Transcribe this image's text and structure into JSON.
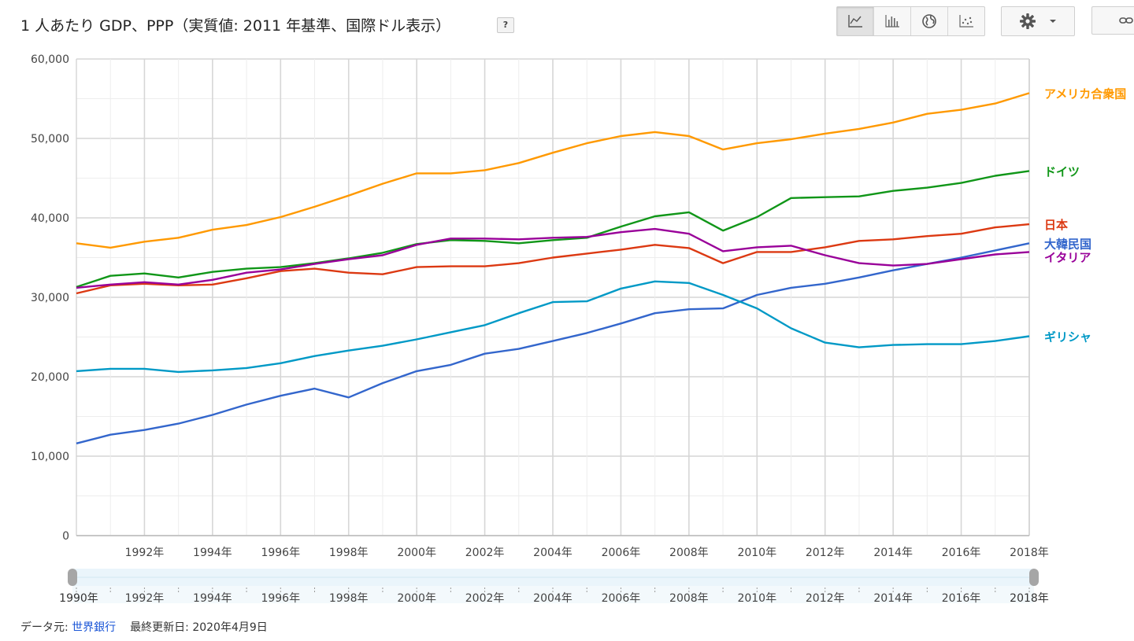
{
  "header": {
    "title": "1 人あたり GDP、PPP（実質値: 2011 年基準、国際ドル表示）",
    "help_label": "?"
  },
  "toolbar": {
    "buttons": [
      {
        "icon": "line-chart-icon",
        "active": true
      },
      {
        "icon": "bar-chart-icon",
        "active": false
      },
      {
        "icon": "globe-icon",
        "active": false
      },
      {
        "icon": "scatter-plot-icon",
        "active": false
      }
    ],
    "settings_icon": "gear-icon",
    "dropdown_icon": "caret-down-icon",
    "link_icon": "link-icon"
  },
  "footer": {
    "source_prefix": "データ元: ",
    "source_link": "世界銀行",
    "updated": "最終更新日: 2020年4月9日"
  },
  "range_slider": {
    "start_label": "1990年",
    "end_label": "2018年",
    "tick_labels": [
      "1992年",
      "1994年",
      "1996年",
      "1998年",
      "2000年",
      "2002年",
      "2004年",
      "2006年",
      "2008年",
      "2010年",
      "2012年",
      "2014年",
      "2016年"
    ]
  },
  "chart_data": {
    "type": "line",
    "title": "1 人あたり GDP、PPP（実質値: 2011 年基準、国際ドル表示）",
    "x": [
      1990,
      1991,
      1992,
      1993,
      1994,
      1995,
      1996,
      1997,
      1998,
      1999,
      2000,
      2001,
      2002,
      2003,
      2004,
      2005,
      2006,
      2007,
      2008,
      2009,
      2010,
      2011,
      2012,
      2013,
      2014,
      2015,
      2016,
      2017,
      2018
    ],
    "x_tick_labels": [
      "1992年",
      "1994年",
      "1996年",
      "1998年",
      "2000年",
      "2002年",
      "2004年",
      "2006年",
      "2008年",
      "2010年",
      "2012年",
      "2014年",
      "2016年",
      "2018年"
    ],
    "x_tick_values": [
      1992,
      1994,
      1996,
      1998,
      2000,
      2002,
      2004,
      2006,
      2008,
      2010,
      2012,
      2014,
      2016,
      2018
    ],
    "y_tick_labels": [
      "0",
      "10,000",
      "20,000",
      "30,000",
      "40,000",
      "50,000",
      "60,000"
    ],
    "y_tick_values": [
      0,
      10000,
      20000,
      30000,
      40000,
      50000,
      60000
    ],
    "ylim": [
      0,
      60000
    ],
    "xlim": [
      1990,
      2018
    ],
    "grid": true,
    "legend": "right, at series end",
    "series": [
      {
        "name": "アメリカ合衆国",
        "color": "#ff9900",
        "values": [
          36800,
          36250,
          37000,
          37500,
          38500,
          39100,
          40100,
          41400,
          42800,
          44300,
          45600,
          45600,
          46000,
          46900,
          48200,
          49400,
          50300,
          50800,
          50300,
          48600,
          49400,
          49900,
          50600,
          51200,
          52000,
          53100,
          53600,
          54400,
          55700
        ]
      },
      {
        "name": "ドイツ",
        "color": "#109618",
        "values": [
          31300,
          32700,
          33000,
          32500,
          33200,
          33600,
          33800,
          34300,
          34900,
          35600,
          36700,
          37200,
          37100,
          36800,
          37200,
          37500,
          38900,
          40200,
          40700,
          38400,
          40100,
          42500,
          42600,
          42700,
          43400,
          43800,
          44400,
          45300,
          45900
        ]
      },
      {
        "name": "日本",
        "color": "#dc3912",
        "values": [
          30500,
          31500,
          31700,
          31500,
          31600,
          32400,
          33300,
          33600,
          33100,
          32900,
          33800,
          33900,
          33900,
          34300,
          35000,
          35500,
          36000,
          36600,
          36200,
          34300,
          35700,
          35700,
          36300,
          37100,
          37300,
          37700,
          38000,
          38800,
          39200
        ]
      },
      {
        "name": "大韓民国",
        "color": "#3366cc",
        "values": [
          11600,
          12700,
          13300,
          14100,
          15200,
          16500,
          17600,
          18500,
          17400,
          19200,
          20700,
          21500,
          22900,
          23500,
          24500,
          25500,
          26700,
          28000,
          28500,
          28600,
          30300,
          31200,
          31700,
          32500,
          33400,
          34200,
          35000,
          35900,
          36800
        ]
      },
      {
        "name": "イタリア",
        "color": "#990099",
        "values": [
          31200,
          31600,
          31900,
          31600,
          32200,
          33100,
          33500,
          34200,
          34800,
          35300,
          36600,
          37400,
          37400,
          37300,
          37500,
          37600,
          38200,
          38600,
          38000,
          35800,
          36300,
          36500,
          35300,
          34300,
          34000,
          34200,
          34800,
          35400,
          35700
        ]
      },
      {
        "name": "ギリシャ",
        "color": "#0099c6",
        "values": [
          20700,
          21000,
          21000,
          20600,
          20800,
          21100,
          21700,
          22600,
          23300,
          23900,
          24700,
          25600,
          26500,
          28000,
          29400,
          29500,
          31100,
          32000,
          31800,
          30300,
          28600,
          26100,
          24300,
          23700,
          24000,
          24100,
          24100,
          24500,
          25100
        ]
      }
    ]
  }
}
